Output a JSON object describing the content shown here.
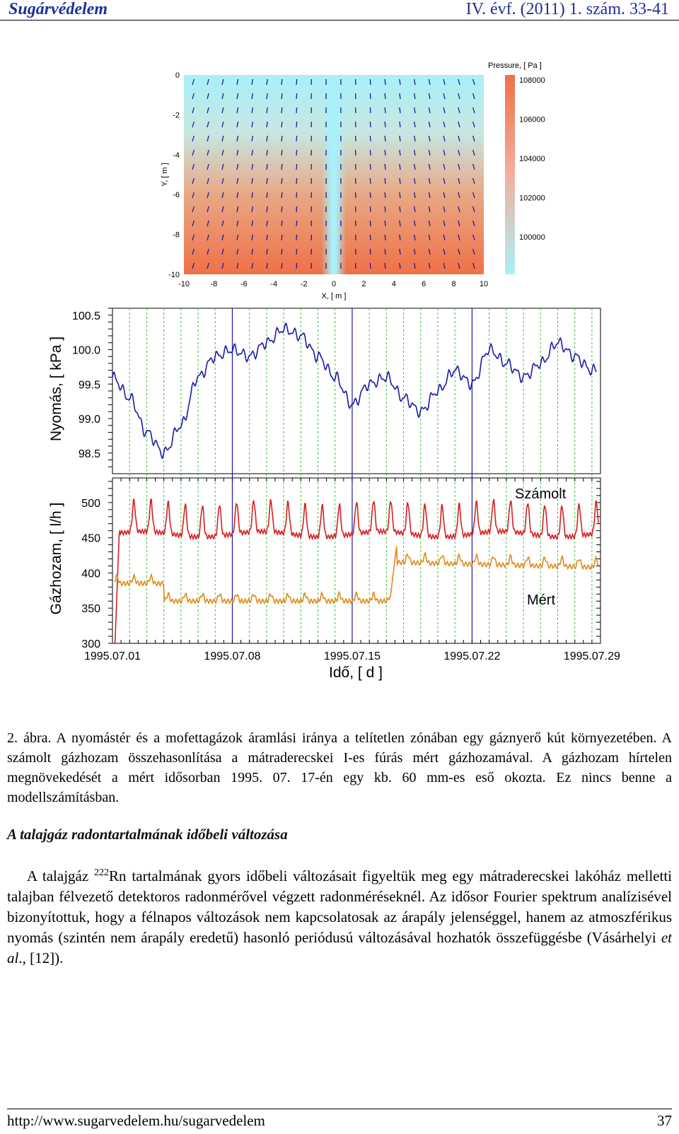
{
  "header": {
    "journal": "Sugárvédelem",
    "issue": "IV. évf. (2011) 1. szám. 33-41"
  },
  "chart_data": [
    {
      "type": "heatmap",
      "colorbar_title": "Pressure, [ Pa ]",
      "colorbar_ticks": [
        "108000",
        "106000",
        "104000",
        "102000",
        "100000"
      ],
      "xlabel": "X, [ m ]",
      "ylabel": "Y, [ m ]",
      "x_ticks": [
        "-10",
        "-8",
        "-6",
        "-4",
        "-2",
        "0",
        "2",
        "4",
        "6",
        "8",
        "10"
      ],
      "y_ticks": [
        "0",
        "-2",
        "-4",
        "-6",
        "-8",
        "-10"
      ],
      "xlim": [
        -10,
        10
      ],
      "ylim": [
        -10,
        0
      ],
      "colors": {
        "low": "#a8f0fa",
        "high": "#f07048"
      }
    },
    {
      "type": "line",
      "ylabel": "Nyomás, [ kPa ]",
      "y_ticks": [
        "100.5",
        "100.0",
        "99.5",
        "99.0",
        "98.5"
      ],
      "ylim": [
        98.2,
        100.6
      ],
      "x": [
        0,
        1,
        2,
        3,
        4,
        5,
        6,
        7,
        8,
        9,
        10,
        11,
        12,
        13,
        14,
        15,
        16,
        17,
        18,
        19,
        20,
        21,
        22,
        23,
        24,
        25,
        26,
        27,
        28
      ],
      "series": [
        {
          "color": "#1a1aa6",
          "values": [
            99.6,
            99.3,
            98.8,
            98.5,
            98.9,
            99.6,
            99.9,
            100.0,
            99.9,
            100.1,
            100.3,
            100.2,
            99.9,
            99.6,
            99.2,
            99.5,
            99.6,
            99.3,
            99.1,
            99.4,
            99.7,
            99.5,
            100.0,
            99.8,
            99.6,
            99.8,
            100.1,
            99.9,
            99.7
          ]
        }
      ]
    },
    {
      "type": "line",
      "ylabel": "Gázhozam, [ l/h ]",
      "y_ticks": [
        "500",
        "450",
        "400",
        "350",
        "300"
      ],
      "ylim": [
        300,
        535
      ],
      "x_ticks": [
        "1995.07.01",
        "1995.07.08",
        "1995.07.15",
        "1995.07.22",
        "1995.07.29"
      ],
      "xlabel": "Idő, [ d ]",
      "series": [
        {
          "name": "Számolt",
          "color": "#d42020"
        },
        {
          "name": "Mért",
          "color": "#e08a1a"
        }
      ]
    }
  ],
  "caption": {
    "label": "2. ábra.",
    "text": "A nyomástér és a mofettagázok áramlási iránya a telítetlen zónában egy gáznyerő kút környezetében. A számolt gázhozam összehasonlítása a mátraderecskei I-es fúrás mért gázhozamával. A gázhozam hírtelen megnövekedését a mért idősorban 1995. 07. 17-én egy kb. 60 mm-es eső okozta. Ez nincs benne a modellszámításban."
  },
  "section": {
    "title": "A talajgáz radontartalmának időbeli változása",
    "p_start": "A talajgáz ",
    "sup": "222",
    "p_rest": "Rn tartalmának gyors időbeli változásait figyeltük meg egy mátraderecskei lakóház melletti talajban félvezető detektoros radonmérővel végzett radonméréseknél. Az idősor Fourier spektrum analízisével bizonyítottuk, hogy a félnapos változások nem kapcsolatosak az árapály jelenséggel, hanem az atmoszférikus nyomás (szintén nem árapály eredetű) hasonló periódusú változásával hozhatók összefüggésbe (Vásárhelyi ",
    "etal": "et al",
    "p_end": "., [12])."
  },
  "footer": {
    "url": "http://www.sugarvedelem.hu/sugarvedelem",
    "page": "37"
  }
}
